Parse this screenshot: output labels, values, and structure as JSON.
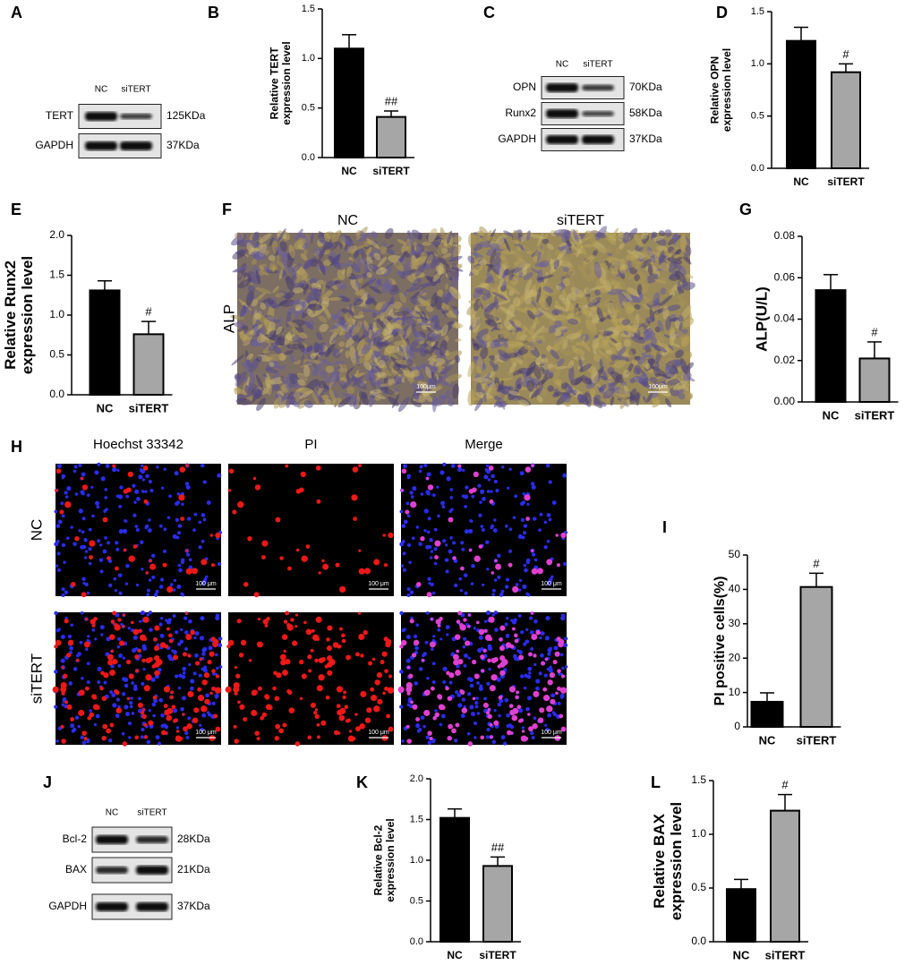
{
  "chart_data": [
    {
      "panel": "B",
      "type": "bar",
      "ylabel": [
        "Relative TERT",
        "expression level"
      ],
      "categories": [
        "NC",
        "siTERT"
      ],
      "values": [
        1.1,
        0.41
      ],
      "errors": [
        0.14,
        0.06
      ],
      "annotations": [
        null,
        "##"
      ],
      "colors": [
        "#000000",
        "#a6a6a6"
      ],
      "ylim": [
        0,
        1.5
      ],
      "yticks": [
        {
          "value": 0,
          "label": "0.0"
        },
        0.5,
        {
          "value": 1,
          "label": "1.0"
        },
        1.5
      ]
    },
    {
      "panel": "D",
      "type": "bar",
      "ylabel": [
        "Relative OPN",
        "expression level"
      ],
      "categories": [
        "NC",
        "siTERT"
      ],
      "values": [
        1.22,
        0.92
      ],
      "errors": [
        0.13,
        0.08
      ],
      "annotations": [
        null,
        "#"
      ],
      "colors": [
        "#000000",
        "#a6a6a6"
      ],
      "ylim": [
        0,
        1.5
      ],
      "yticks": [
        {
          "value": 0,
          "label": "0.0"
        },
        0.5,
        {
          "value": 1,
          "label": "1.0"
        },
        1.5
      ]
    },
    {
      "panel": "E",
      "type": "bar",
      "ylabel": [
        "Relative Runx2",
        "expression level"
      ],
      "categories": [
        "NC",
        "siTERT"
      ],
      "values": [
        1.31,
        0.76
      ],
      "errors": [
        0.12,
        0.16
      ],
      "annotations": [
        null,
        "#"
      ],
      "colors": [
        "#000000",
        "#a6a6a6"
      ],
      "ylim": [
        0,
        2
      ],
      "yticks": [
        {
          "value": 0,
          "label": "0.0"
        },
        0.5,
        {
          "value": 1,
          "label": "1.0"
        },
        1.5,
        {
          "value": 2,
          "label": "2.0"
        }
      ]
    },
    {
      "panel": "G",
      "type": "bar",
      "ylabel": [
        "ALP(U/L)"
      ],
      "categories": [
        "NC",
        "siTERT"
      ],
      "values": [
        0.054,
        0.021
      ],
      "errors": [
        0.0075,
        0.008
      ],
      "annotations": [
        null,
        "#"
      ],
      "colors": [
        "#000000",
        "#a6a6a6"
      ],
      "ylim": [
        0,
        0.08
      ],
      "yticks": [
        {
          "value": 0,
          "label": "0.00"
        },
        {
          "value": 0.02,
          "label": "0.02"
        },
        {
          "value": 0.04,
          "label": "0.04"
        },
        {
          "value": 0.06,
          "label": "0.06"
        },
        {
          "value": 0.08,
          "label": "0.08"
        }
      ]
    },
    {
      "panel": "I",
      "type": "bar",
      "ylabel": [
        "PI positive cells(%)"
      ],
      "categories": [
        "NC",
        "siTERT"
      ],
      "values": [
        7.3,
        40.7
      ],
      "errors": [
        2.6,
        4.0
      ],
      "annotations": [
        null,
        "#"
      ],
      "colors": [
        "#000000",
        "#a6a6a6"
      ],
      "ylim": [
        0,
        50
      ],
      "yticks": [
        0,
        10,
        20,
        30,
        40,
        50
      ]
    },
    {
      "panel": "K",
      "type": "bar",
      "ylabel": [
        "Relative Bcl-2",
        "expression level"
      ],
      "categories": [
        "NC",
        "siTERT"
      ],
      "values": [
        1.52,
        0.93
      ],
      "errors": [
        0.11,
        0.11
      ],
      "annotations": [
        null,
        "##"
      ],
      "colors": [
        "#000000",
        "#a6a6a6"
      ],
      "ylim": [
        0,
        2
      ],
      "yticks": [
        {
          "value": 0,
          "label": "0.0"
        },
        0.5,
        {
          "value": 1,
          "label": "1.0"
        },
        1.5,
        {
          "value": 2,
          "label": "2.0"
        }
      ]
    },
    {
      "panel": "L",
      "type": "bar",
      "ylabel": [
        "Relative BAX",
        "expression level"
      ],
      "categories": [
        "NC",
        "siTERT"
      ],
      "values": [
        0.49,
        1.22
      ],
      "errors": [
        0.09,
        0.15
      ],
      "annotations": [
        null,
        "#"
      ],
      "colors": [
        "#000000",
        "#a6a6a6"
      ],
      "ylim": [
        0,
        1.5
      ],
      "yticks": [
        {
          "value": 0,
          "label": "0.0"
        },
        0.5,
        {
          "value": 1,
          "label": "1.0"
        },
        1.5
      ]
    }
  ],
  "blots": [
    {
      "panel": "A",
      "lanes": [
        "NC",
        "siTERT"
      ],
      "rows": [
        {
          "protein": "TERT",
          "size": "125KDa"
        },
        {
          "protein": "GAPDH",
          "size": "37KDa"
        }
      ]
    },
    {
      "panel": "C",
      "lanes": [
        "NC",
        "siTERT"
      ],
      "rows": [
        {
          "protein": "OPN",
          "size": "70KDa"
        },
        {
          "protein": "Runx2",
          "size": "58KDa"
        },
        {
          "protein": "GAPDH",
          "size": "37KDa"
        }
      ]
    },
    {
      "panel": "J",
      "lanes": [
        "NC",
        "siTERT"
      ],
      "rows": [
        {
          "protein": "Bcl-2",
          "size": "28KDa"
        },
        {
          "protein": "BAX",
          "size": "21KDa"
        },
        {
          "protein": "GAPDH",
          "size": "37KDa"
        }
      ]
    }
  ],
  "images": [
    {
      "panel": "F",
      "columns": [
        "NC",
        "siTERT"
      ],
      "rows": [
        "ALP"
      ],
      "scale_bar": "100μm"
    },
    {
      "panel": "H",
      "columns": [
        "Hoechst 33342",
        "PI",
        "Merge"
      ],
      "rows": [
        "NC",
        "siTERT"
      ],
      "scale_bar": "100 μm"
    }
  ]
}
